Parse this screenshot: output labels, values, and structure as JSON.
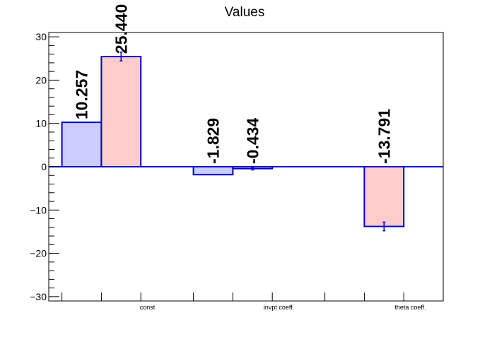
{
  "chart_data": {
    "type": "bar",
    "title": "Values",
    "xlabel": "",
    "ylabel": "",
    "categories": [
      "const",
      "invpt coeff.",
      "theta coeff."
    ],
    "ylim": [
      -31,
      31
    ],
    "yticks": [
      -30,
      -20,
      -10,
      0,
      10,
      20,
      30
    ],
    "ytick_labels": [
      "−30",
      "−20",
      "−10",
      "0",
      "10",
      "20",
      "30"
    ],
    "grid": false,
    "legend": "none",
    "series": [
      {
        "color_fill": "#ccccff",
        "color_edge": "#0000cc",
        "values": [
          10.257,
          -1.829,
          null
        ],
        "labels": [
          "10.257",
          "-1.829",
          ""
        ],
        "errors": [
          0,
          0,
          0
        ]
      },
      {
        "color_fill": "#ffcccc",
        "color_edge": "#0000cc",
        "values": [
          25.44,
          -0.434,
          -13.791
        ],
        "labels": [
          "25.440",
          "-0.434",
          "-13.791"
        ],
        "errors": [
          1.0,
          0.3,
          1.0
        ]
      }
    ]
  }
}
